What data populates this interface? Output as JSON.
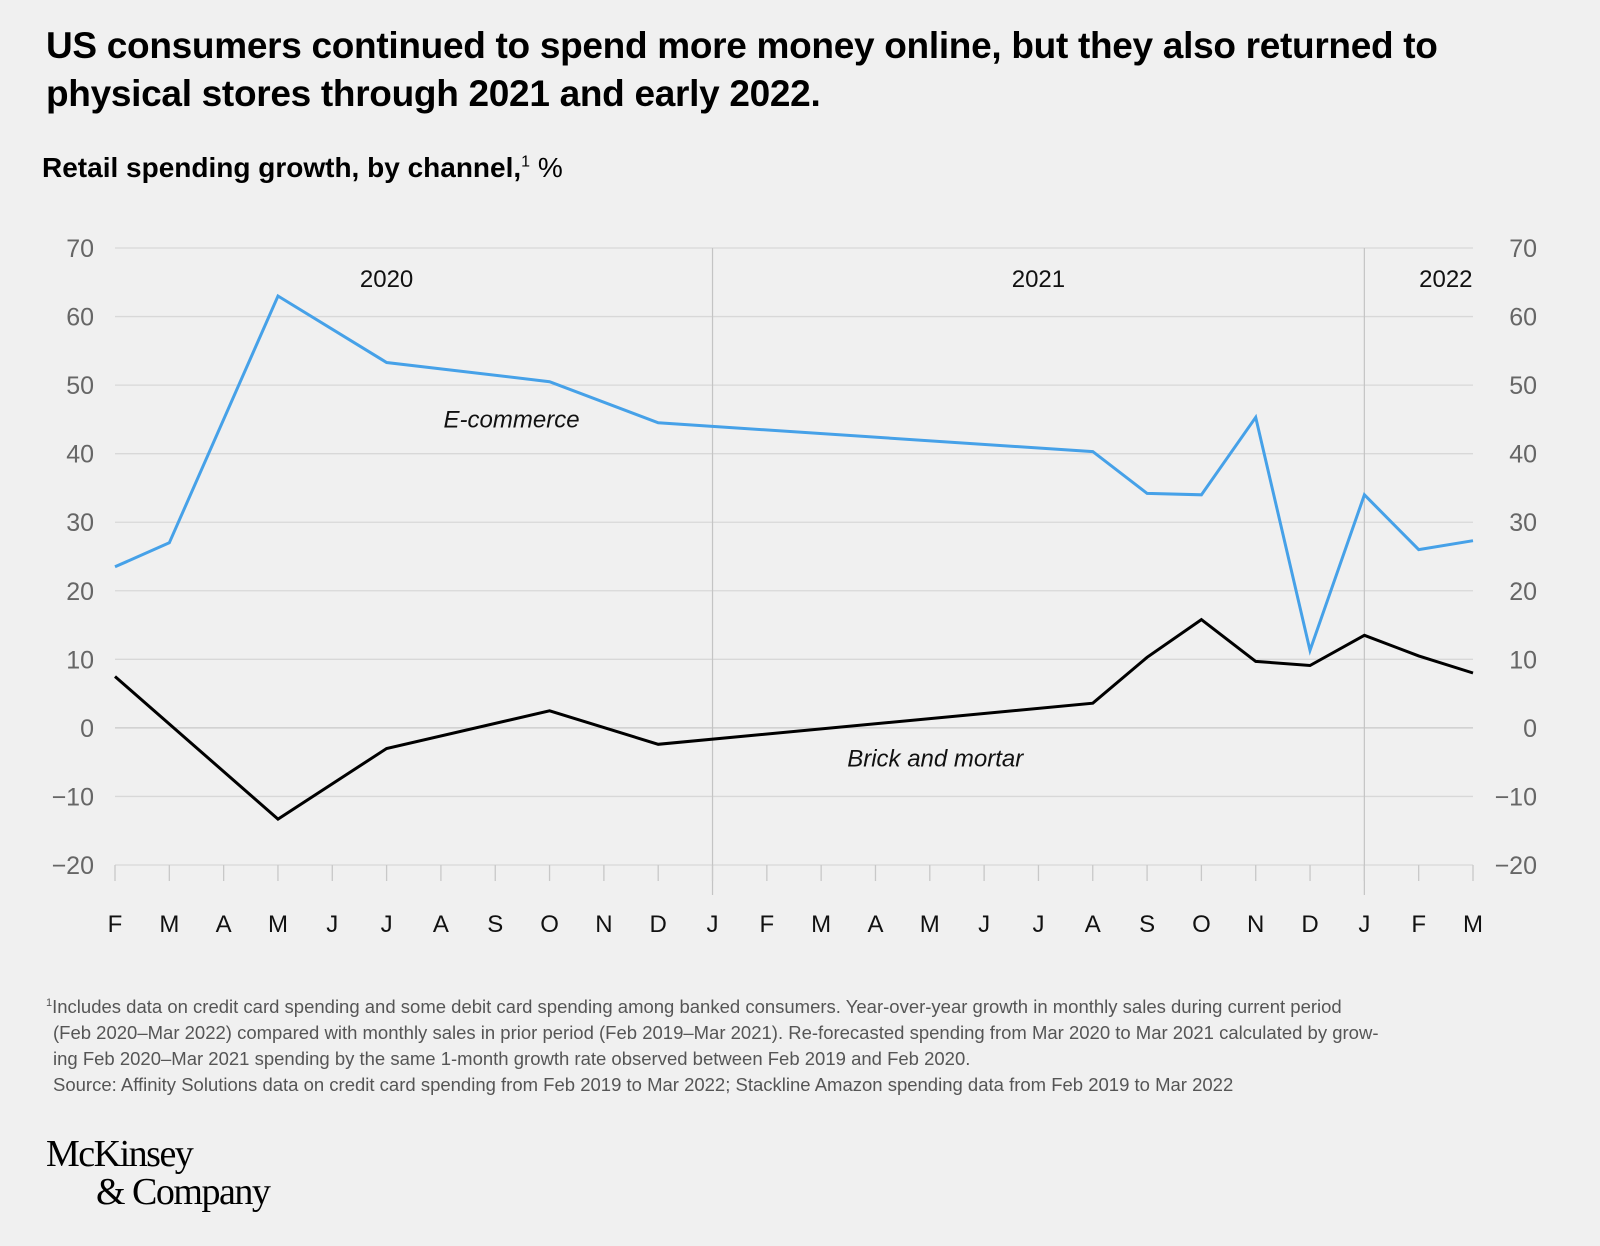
{
  "title": "US consumers continued to spend more money online, but they also returned to physical stores through 2021 and early 2022.",
  "subtitle": {
    "text": "Retail spending growth, by channel,",
    "footnote_mark": "1",
    "unit": "%"
  },
  "chart_data": {
    "type": "line",
    "x": [
      "F",
      "M",
      "A",
      "M",
      "J",
      "J",
      "A",
      "S",
      "O",
      "N",
      "D",
      "J",
      "F",
      "M",
      "A",
      "M",
      "J",
      "J",
      "A",
      "S",
      "O",
      "N",
      "D",
      "J",
      "F",
      "M"
    ],
    "year_labels": [
      {
        "label": "2020",
        "index": 5
      },
      {
        "label": "2021",
        "index": 17
      },
      {
        "label": "2022",
        "index": 24.5
      }
    ],
    "year_dividers": [
      11,
      23
    ],
    "yticks": [
      70,
      60,
      50,
      40,
      30,
      20,
      10,
      0,
      -10,
      -20
    ],
    "ytick_labels": [
      "70",
      "60",
      "50",
      "40",
      "30",
      "20",
      "10",
      "0",
      "−10",
      "−20"
    ],
    "ylim": [
      -20,
      70
    ],
    "grid": true,
    "series": [
      {
        "name": "E-commerce",
        "color": "#46a1e8",
        "label_at": [
          7.3,
          45
        ],
        "values": [
          23.5,
          27,
          null,
          63,
          null,
          53.3,
          null,
          null,
          50.5,
          null,
          44.5,
          null,
          null,
          null,
          null,
          null,
          null,
          null,
          40.3,
          34.2,
          34,
          45.3,
          11.3,
          34,
          26,
          27.3
        ]
      },
      {
        "name": "Brick and mortar",
        "color": "#000000",
        "label_at": [
          15.1,
          -4.5
        ],
        "values": [
          7.5,
          null,
          null,
          -13.3,
          null,
          -3,
          null,
          null,
          2.5,
          null,
          -2.4,
          null,
          null,
          null,
          null,
          null,
          null,
          null,
          3.6,
          10.3,
          15.8,
          9.7,
          9.1,
          13.5,
          10.5,
          8
        ]
      }
    ]
  },
  "footnote": {
    "mark": "1",
    "lines": [
      "Includes data on credit card spending and some debit card spending among banked consumers. Year-over-year growth in monthly sales during current period",
      "(Feb 2020–Mar 2022) compared with monthly sales in prior period (Feb 2019–Mar 2021). Re-forecasted spending from Mar 2020 to Mar 2021 calculated by grow-",
      "ing Feb 2020–Mar 2021 spending by the same 1-month growth rate observed between Feb 2019 and Feb 2020."
    ],
    "source": "Source: Affinity Solutions data on credit card spending from Feb 2019 to Mar 2022; Stackline Amazon spending data from Feb 2019 to Mar 2022"
  },
  "logo": {
    "line1": "McKinsey",
    "line2": "& Company"
  }
}
